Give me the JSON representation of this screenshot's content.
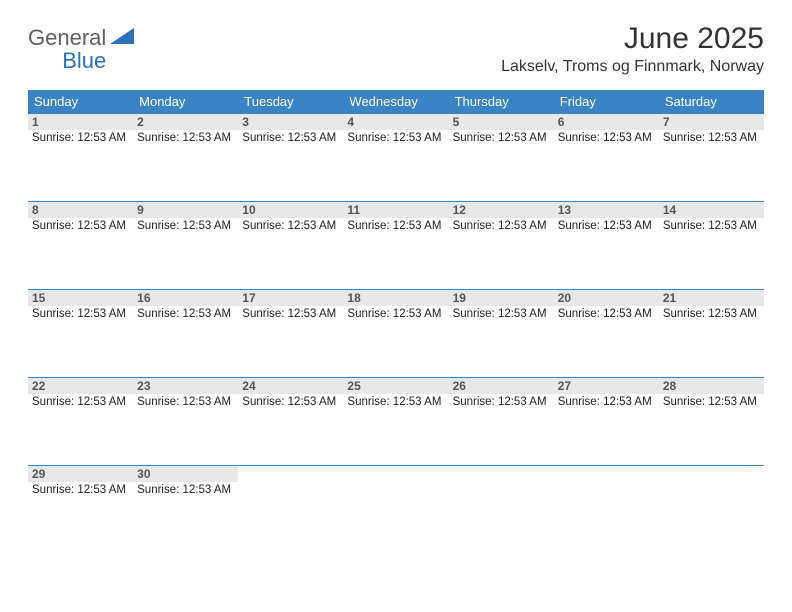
{
  "brand": {
    "part1": "General",
    "part2": "Blue"
  },
  "title": "June 2025",
  "location": "Lakselv, Troms og Finnmark, Norway",
  "colors": {
    "header_bg": "#3a83c5",
    "header_text": "#ffffff",
    "daynum_bg": "#e8e8e8",
    "week_border": "#3a83c5",
    "brand_gray": "#606060",
    "brand_blue": "#2d72b8",
    "text": "#222222",
    "page_bg": "#ffffff"
  },
  "daynames": [
    "Sunday",
    "Monday",
    "Tuesday",
    "Wednesday",
    "Thursday",
    "Friday",
    "Saturday"
  ],
  "sunrise_label": "Sunrise: 12:53 AM",
  "weeks": [
    [
      {
        "n": "1",
        "s": true
      },
      {
        "n": "2",
        "s": true
      },
      {
        "n": "3",
        "s": true
      },
      {
        "n": "4",
        "s": true
      },
      {
        "n": "5",
        "s": true
      },
      {
        "n": "6",
        "s": true
      },
      {
        "n": "7",
        "s": true
      }
    ],
    [
      {
        "n": "8",
        "s": true
      },
      {
        "n": "9",
        "s": true
      },
      {
        "n": "10",
        "s": true
      },
      {
        "n": "11",
        "s": true
      },
      {
        "n": "12",
        "s": true
      },
      {
        "n": "13",
        "s": true
      },
      {
        "n": "14",
        "s": true
      }
    ],
    [
      {
        "n": "15",
        "s": true
      },
      {
        "n": "16",
        "s": true
      },
      {
        "n": "17",
        "s": true
      },
      {
        "n": "18",
        "s": true
      },
      {
        "n": "19",
        "s": true
      },
      {
        "n": "20",
        "s": true
      },
      {
        "n": "21",
        "s": true
      }
    ],
    [
      {
        "n": "22",
        "s": true
      },
      {
        "n": "23",
        "s": true
      },
      {
        "n": "24",
        "s": true
      },
      {
        "n": "25",
        "s": true
      },
      {
        "n": "26",
        "s": true
      },
      {
        "n": "27",
        "s": true
      },
      {
        "n": "28",
        "s": true
      }
    ],
    [
      {
        "n": "29",
        "s": true
      },
      {
        "n": "30",
        "s": true
      },
      {
        "n": "",
        "s": false
      },
      {
        "n": "",
        "s": false
      },
      {
        "n": "",
        "s": false
      },
      {
        "n": "",
        "s": false
      },
      {
        "n": "",
        "s": false
      }
    ]
  ]
}
